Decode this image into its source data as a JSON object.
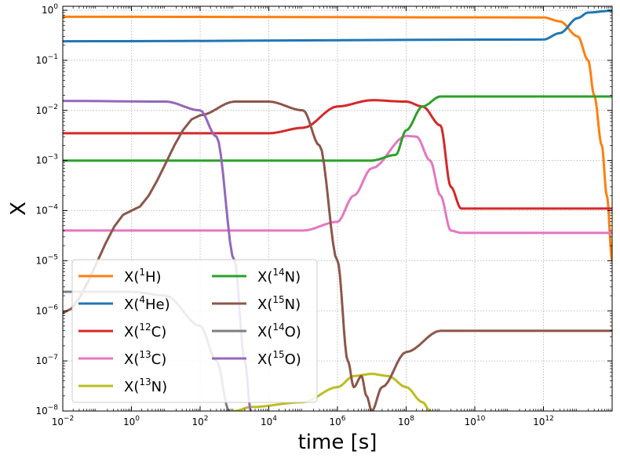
{
  "chart_data": {
    "type": "line",
    "title": "",
    "xlabel": "time [s]",
    "ylabel": "X",
    "xscale": "log",
    "yscale": "log",
    "xlim": [
      0.01,
      100000000000000.0
    ],
    "ylim": [
      1e-08,
      1.2
    ],
    "grid": true,
    "legend_position": "lower-left",
    "legend_columns": 2,
    "x_ticks": [
      {
        "value": 0.01,
        "base": "10",
        "exp": "−2"
      },
      {
        "value": 1,
        "base": "10",
        "exp": "0"
      },
      {
        "value": 100,
        "base": "10",
        "exp": "2"
      },
      {
        "value": 10000,
        "base": "10",
        "exp": "4"
      },
      {
        "value": 1000000,
        "base": "10",
        "exp": "6"
      },
      {
        "value": 100000000,
        "base": "10",
        "exp": "8"
      },
      {
        "value": 10000000000,
        "base": "10",
        "exp": "10"
      },
      {
        "value": 1000000000000,
        "base": "10",
        "exp": "12"
      }
    ],
    "y_ticks": [
      {
        "value": 1e-08,
        "base": "10",
        "exp": "−8"
      },
      {
        "value": 1e-07,
        "base": "10",
        "exp": "−7"
      },
      {
        "value": 1e-06,
        "base": "10",
        "exp": "−6"
      },
      {
        "value": 1e-05,
        "base": "10",
        "exp": "−5"
      },
      {
        "value": 0.0001,
        "base": "10",
        "exp": "−4"
      },
      {
        "value": 0.001,
        "base": "10",
        "exp": "−3"
      },
      {
        "value": 0.01,
        "base": "10",
        "exp": "−2"
      },
      {
        "value": 0.1,
        "base": "10",
        "exp": "−1"
      },
      {
        "value": 1,
        "base": "10",
        "exp": "0"
      }
    ],
    "series": [
      {
        "name": "X(1H)",
        "label_prefix": "X(",
        "label_sup": "1",
        "label_suffix": "H)",
        "color": "#ff7f0e",
        "legend_col": 0,
        "points": [
          [
            0.01,
            0.74
          ],
          [
            1000000000000.0,
            0.72
          ],
          [
            3000000000000.0,
            0.6
          ],
          [
            10000000000000.0,
            0.3
          ],
          [
            20000000000000.0,
            0.1
          ],
          [
            30000000000000.0,
            0.02
          ],
          [
            50000000000000.0,
            0.002
          ],
          [
            70000000000000.0,
            0.0002
          ],
          [
            100000000000000.0,
            1e-05
          ]
        ]
      },
      {
        "name": "X(4He)",
        "label_prefix": "X(",
        "label_sup": "4",
        "label_suffix": "He)",
        "color": "#1f77b4",
        "legend_col": 0,
        "points": [
          [
            0.01,
            0.24
          ],
          [
            1000000000000.0,
            0.26
          ],
          [
            3000000000000.0,
            0.35
          ],
          [
            10000000000000.0,
            0.7
          ],
          [
            20000000000000.0,
            0.9
          ],
          [
            100000000000000.0,
            0.98
          ]
        ]
      },
      {
        "name": "X(12C)",
        "label_prefix": "X(",
        "label_sup": "12",
        "label_suffix": "C)",
        "color": "#d62728",
        "legend_col": 0,
        "points": [
          [
            0.01,
            0.0035
          ],
          [
            10000.0,
            0.0035
          ],
          [
            100000.0,
            0.0045
          ],
          [
            1000000.0,
            0.012
          ],
          [
            10000000.0,
            0.016
          ],
          [
            100000000.0,
            0.015
          ],
          [
            300000000.0,
            0.012
          ],
          [
            1000000000.0,
            0.005
          ],
          [
            2000000000.0,
            0.0003
          ],
          [
            4000000000.0,
            0.00011
          ],
          [
            100000000000000.0,
            0.00011
          ]
        ]
      },
      {
        "name": "X(13C)",
        "label_prefix": "X(",
        "label_sup": "13",
        "label_suffix": "C)",
        "color": "#e377c2",
        "legend_col": 0,
        "points": [
          [
            0.01,
            4e-05
          ],
          [
            100000.0,
            4e-05
          ],
          [
            1000000.0,
            6e-05
          ],
          [
            3000000.0,
            0.0002
          ],
          [
            10000000.0,
            0.0007
          ],
          [
            100000000.0,
            0.0031
          ],
          [
            200000000.0,
            0.003
          ],
          [
            500000000.0,
            0.001
          ],
          [
            1000000000.0,
            0.0002
          ],
          [
            2000000000.0,
            4e-05
          ],
          [
            4000000000.0,
            3.6e-05
          ],
          [
            100000000000000.0,
            3.6e-05
          ]
        ]
      },
      {
        "name": "X(13N)",
        "label_prefix": "X(",
        "label_sup": "13",
        "label_suffix": "N)",
        "color": "#bcbd22",
        "legend_col": 0,
        "points": [
          [
            1000.0,
            1e-08
          ],
          [
            3000.0,
            1.2e-08
          ],
          [
            100000.0,
            1.5e-08
          ],
          [
            1000000.0,
            3e-08
          ],
          [
            3000000.0,
            5e-08
          ],
          [
            10000000.0,
            5.5e-08
          ],
          [
            30000000.0,
            5e-08
          ],
          [
            100000000.0,
            3e-08
          ],
          [
            300000000.0,
            1.5e-08
          ],
          [
            500000000.0,
            1e-08
          ]
        ]
      },
      {
        "name": "X(14N)",
        "label_prefix": "X(",
        "label_sup": "14",
        "label_suffix": "N)",
        "color": "#2ca02c",
        "legend_col": 1,
        "points": [
          [
            0.01,
            0.001
          ],
          [
            10000000.0,
            0.001
          ],
          [
            50000000.0,
            0.0013
          ],
          [
            100000000.0,
            0.004
          ],
          [
            300000000.0,
            0.012
          ],
          [
            1000000000.0,
            0.019
          ],
          [
            100000000000000.0,
            0.019
          ]
        ]
      },
      {
        "name": "X(15N)",
        "label_prefix": "X(",
        "label_sup": "15",
        "label_suffix": "N)",
        "color": "#8c564b",
        "legend_col": 1,
        "points": [
          [
            0.01,
            9e-07
          ],
          [
            1,
            0.0001
          ],
          [
            100,
            0.008
          ],
          [
            1000,
            0.015
          ],
          [
            10000.0,
            0.015
          ],
          [
            100000.0,
            0.01
          ],
          [
            300000.0,
            0.002
          ],
          [
            1000000.0,
            1e-05
          ],
          [
            2000000.0,
            1e-07
          ],
          [
            3000000.0,
            3e-08
          ],
          [
            5000000.0,
            5e-08
          ],
          [
            7000000.0,
            2e-08
          ],
          [
            10000000.0,
            1e-08
          ],
          [
            20000000.0,
            3e-08
          ],
          [
            100000000.0,
            1.5e-07
          ],
          [
            1000000000.0,
            4e-07
          ],
          [
            100000000000000.0,
            4e-07
          ]
        ]
      },
      {
        "name": "X(14O)",
        "label_prefix": "X(",
        "label_sup": "14",
        "label_suffix": "O)",
        "color": "#7f7f7f",
        "legend_col": 1,
        "points": [
          [
            0.01,
            2.4e-06
          ],
          [
            1,
            2.4e-06
          ],
          [
            10,
            2e-06
          ],
          [
            100,
            5e-07
          ],
          [
            300,
            1e-07
          ],
          [
            700,
            1e-08
          ]
        ]
      },
      {
        "name": "X(15O)",
        "label_prefix": "X(",
        "label_sup": "15",
        "label_suffix": "O)",
        "color": "#9467bd",
        "legend_col": 1,
        "points": [
          [
            0.01,
            0.0155
          ],
          [
            10,
            0.015
          ],
          [
            100,
            0.01
          ],
          [
            300,
            0.003
          ],
          [
            1000,
            1e-05
          ],
          [
            2000,
            1e-07
          ],
          [
            3000,
            1e-08
          ]
        ]
      }
    ]
  }
}
